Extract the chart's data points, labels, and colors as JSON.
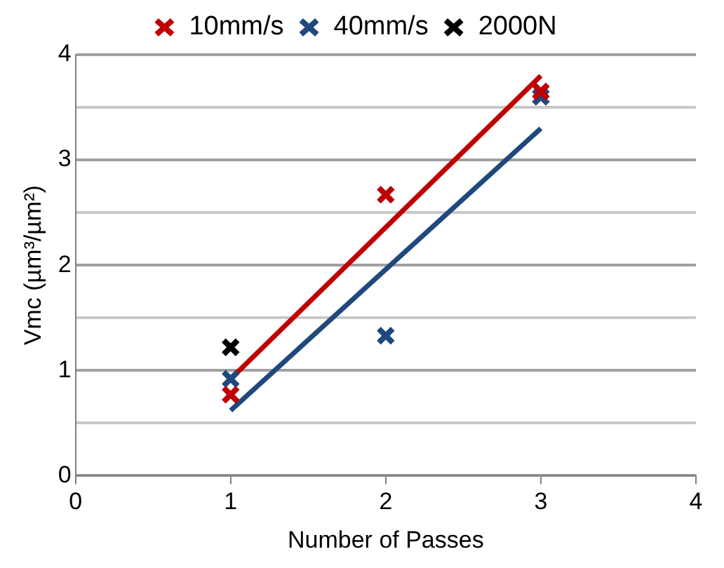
{
  "chart_data": {
    "type": "scatter",
    "xlabel": "Number of Passes",
    "ylabel": "Vmc (µm³/µm²)",
    "xlim": [
      0,
      4
    ],
    "xticks": [
      0,
      1,
      2,
      3,
      4
    ],
    "ylim": [
      0,
      4
    ],
    "yticks": [
      0,
      {
        "value": 0.5,
        "label": null
      },
      1,
      {
        "value": 1.5,
        "label": null
      },
      2,
      {
        "value": 2.5,
        "label": null
      },
      3,
      {
        "value": 3.5,
        "label": null
      },
      4
    ],
    "grid": "y",
    "legend": "top",
    "marker": "cross",
    "series": [
      {
        "name": "10mm/s",
        "color": "#c00000",
        "x": [
          1,
          2,
          3
        ],
        "values": [
          0.77,
          2.67,
          3.65
        ]
      },
      {
        "name": "40mm/s",
        "color": "#1f497d",
        "x": [
          1,
          2,
          3
        ],
        "values": [
          0.92,
          1.33,
          3.6
        ]
      },
      {
        "name": "2000N",
        "color": "#000000",
        "x": [
          1
        ],
        "values": [
          1.22
        ]
      },
      {
        "type": "line",
        "color": "#c00000",
        "x": [
          1,
          3
        ],
        "values": [
          0.92,
          3.8
        ],
        "marker": "none"
      },
      {
        "type": "line",
        "color": "#1f497d",
        "x": [
          1,
          3
        ],
        "values": [
          0.62,
          3.3
        ],
        "marker": "none"
      }
    ]
  }
}
